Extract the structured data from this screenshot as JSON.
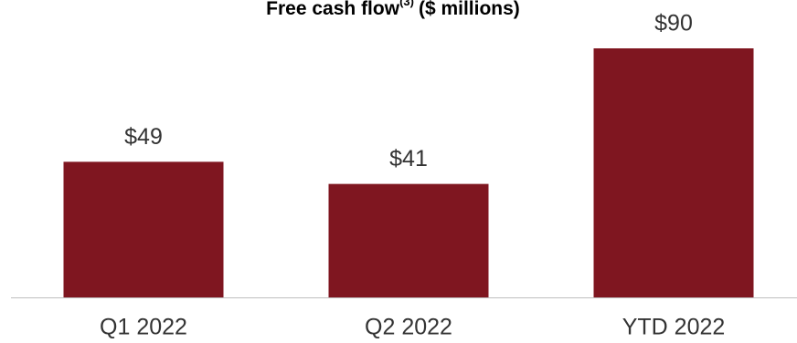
{
  "chart_data": {
    "type": "bar",
    "title": "Free cash flow",
    "title_superscript": "(3)",
    "title_suffix": "($ millions)",
    "categories": [
      "Q1 2022",
      "Q2 2022",
      "YTD 2022"
    ],
    "values": [
      49,
      41,
      90
    ],
    "value_labels": [
      "$49",
      "$41",
      "$90"
    ],
    "color": "#7f1620"
  }
}
